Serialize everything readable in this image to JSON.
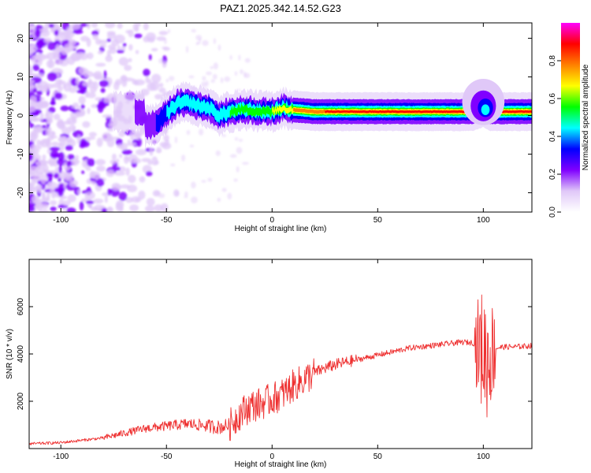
{
  "figure_title": "PAZ1.2025.342.14.52.G23",
  "chart_data": [
    {
      "type": "heatmap",
      "title": "PAZ1.2025.342.14.52.G23",
      "xlabel": "Height of straight line (km)",
      "ylabel": "Frequency (Hz)",
      "xlim": [
        -115,
        123
      ],
      "ylim": [
        -25,
        24
      ],
      "xticks": [
        -100,
        -50,
        0,
        50,
        100
      ],
      "yticks": [
        -20,
        -10,
        0,
        10,
        20
      ],
      "xtick_labels": [
        "-100",
        "-50",
        "0",
        "50",
        "100"
      ],
      "ytick_labels": [
        "-20",
        "-10",
        "0",
        "10",
        "20"
      ],
      "description_of_structure": {
        "noise_region_x": [
          -115,
          -55
        ],
        "trace_points": [
          {
            "x": -60,
            "y": -3.0
          },
          {
            "x": -55,
            "y": -2.0
          },
          {
            "x": -50,
            "y": 0.5
          },
          {
            "x": -45,
            "y": 3.0
          },
          {
            "x": -40,
            "y": 3.5
          },
          {
            "x": -35,
            "y": 2.5
          },
          {
            "x": -30,
            "y": 2.0
          },
          {
            "x": -25,
            "y": 0.0
          },
          {
            "x": -20,
            "y": 1.0
          },
          {
            "x": -15,
            "y": 1.5
          },
          {
            "x": -10,
            "y": 1.5
          },
          {
            "x": -5,
            "y": 1.0
          },
          {
            "x": 0,
            "y": 1.0
          },
          {
            "x": 5,
            "y": 2.0
          },
          {
            "x": 10,
            "y": 1.5
          },
          {
            "x": 20,
            "y": 1.0
          },
          {
            "x": 50,
            "y": 1.0
          },
          {
            "x": 95,
            "y": 1.0
          },
          {
            "x": 100,
            "y": 2.0
          },
          {
            "x": 103,
            "y": 1.0
          },
          {
            "x": 123,
            "y": 1.0
          }
        ]
      },
      "colorbar": {
        "label": "Normalized spectral amplitude",
        "range": [
          0.0,
          1.0
        ],
        "ticks": [
          0.0,
          0.2,
          0.4,
          0.6,
          0.8
        ],
        "tick_labels": [
          "0.0",
          "0.2",
          "0.4",
          "0.6",
          "0.8"
        ],
        "colormap": [
          "#ffffff",
          "#e0c8f8",
          "#8000ff",
          "#0000ff",
          "#00ffff",
          "#00ff00",
          "#ffff00",
          "#ff8000",
          "#ff0000",
          "#ff00ff"
        ]
      }
    },
    {
      "type": "line",
      "title": "",
      "xlabel": "Height of straight line (km)",
      "ylabel": "SNR (10 * v/v)",
      "xlim": [
        -115,
        123
      ],
      "ylim": [
        0,
        8000
      ],
      "xticks": [
        -100,
        -50,
        0,
        50,
        100
      ],
      "yticks": [
        2000,
        4000,
        6000
      ],
      "xtick_labels": [
        "-100",
        "-50",
        "0",
        "50",
        "100"
      ],
      "ytick_labels": [
        "2000",
        "4000",
        "6000"
      ],
      "series": [
        {
          "name": "SNR",
          "color": "#ee3030",
          "x": [
            -115,
            -100,
            -90,
            -80,
            -70,
            -60,
            -50,
            -45,
            -40,
            -35,
            -30,
            -25,
            -20,
            -15,
            -10,
            -5,
            0,
            5,
            10,
            15,
            20,
            25,
            30,
            35,
            40,
            45,
            50,
            55,
            60,
            65,
            70,
            75,
            80,
            85,
            90,
            95,
            98,
            100,
            102,
            104,
            106,
            110,
            115,
            123
          ],
          "y": [
            200,
            250,
            350,
            450,
            650,
            850,
            950,
            1000,
            1050,
            1000,
            950,
            900,
            1000,
            1500,
            1800,
            1900,
            2100,
            2300,
            2650,
            2900,
            3200,
            3400,
            3550,
            3650,
            3750,
            3850,
            3950,
            4050,
            4150,
            4250,
            4300,
            4350,
            4400,
            4450,
            4500,
            4480,
            4300,
            4100,
            3800,
            4100,
            4250,
            4300,
            4300,
            4350
          ]
        }
      ]
    }
  ]
}
